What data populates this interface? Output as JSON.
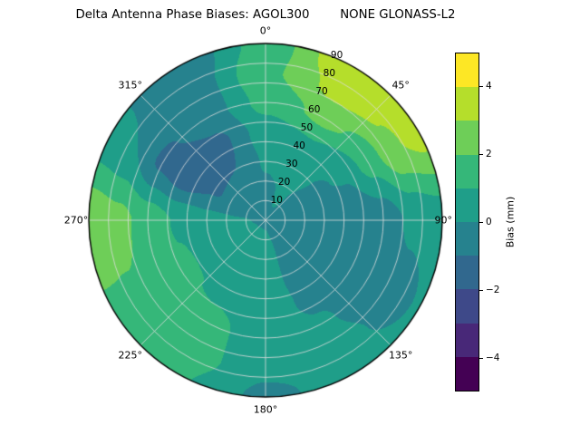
{
  "title": "Delta Antenna Phase Biases: AGOL300        NONE GLONASS-L2",
  "chart_data": {
    "type": "heatmap",
    "subtype": "polar_filled_contour",
    "projection": "polar, 0° azimuth at top (north), clockwise, radial axis = zenith angle 0-90",
    "theta_values": [
      0,
      45,
      90,
      135,
      180,
      225,
      270,
      315
    ],
    "theta_labels": [
      "0°",
      "45°",
      "90°",
      "135°",
      "180°",
      "225°",
      "270°",
      "315°"
    ],
    "r_tick_values": [
      10,
      20,
      30,
      40,
      50,
      60,
      70,
      80,
      90
    ],
    "r_max": 90,
    "r_label_azimuth_deg": 22.5,
    "azimuth_deg": [
      0,
      30,
      60,
      90,
      120,
      150,
      180,
      210,
      240,
      270,
      300,
      330
    ],
    "zenith_deg": [
      0,
      15,
      30,
      45,
      60,
      75,
      90
    ],
    "bias_mm": [
      [
        -0.1,
        -0.1,
        -0.1,
        -0.1,
        -0.1,
        -0.1,
        -0.1,
        -0.1,
        -0.1,
        -0.1,
        -0.1,
        -0.1
      ],
      [
        -0.2,
        0.1,
        -0.2,
        -0.5,
        -0.6,
        -0.2,
        0.3,
        0.4,
        0.3,
        0.1,
        -0.6,
        -0.5
      ],
      [
        0.1,
        0.4,
        -0.1,
        -0.8,
        -0.9,
        -0.3,
        0.4,
        0.6,
        0.6,
        0.4,
        -1.1,
        -1.0
      ],
      [
        0.5,
        0.9,
        0.1,
        -0.9,
        -0.95,
        -0.2,
        0.5,
        0.9,
        1.1,
        0.9,
        -1.7,
        -1.2
      ],
      [
        1.3,
        2.3,
        1.4,
        -0.6,
        -0.8,
        0.1,
        0.5,
        1.3,
        1.7,
        1.6,
        -1.2,
        -0.6
      ],
      [
        1.8,
        3.3,
        2.9,
        0.2,
        -0.4,
        0.3,
        0.2,
        1.5,
        1.9,
        2.3,
        0.0,
        -0.7
      ],
      [
        1.4,
        3.9,
        3.4,
        0.5,
        0.1,
        0.4,
        -0.2,
        1.1,
        1.9,
        2.7,
        0.3,
        -0.9
      ]
    ],
    "contour_levels_mm": [
      -5,
      -4,
      -3,
      -2,
      -1,
      0,
      1,
      2,
      3,
      4,
      5
    ],
    "level_colors": [
      "#440154",
      "#482878",
      "#3e4989",
      "#31688e",
      "#26828e",
      "#1f9e89",
      "#35b779",
      "#6ece58",
      "#b5de2b",
      "#fde725"
    ],
    "grid_color": "#dcdcdc",
    "outline_color": "#000000",
    "colorbar": {
      "label": "Bias (mm)",
      "min": -5,
      "max": 5,
      "tick_values": [
        4,
        2,
        0,
        -2,
        -4
      ],
      "tick_labels": [
        "4",
        "2",
        "0",
        "−2",
        "−4"
      ]
    }
  }
}
